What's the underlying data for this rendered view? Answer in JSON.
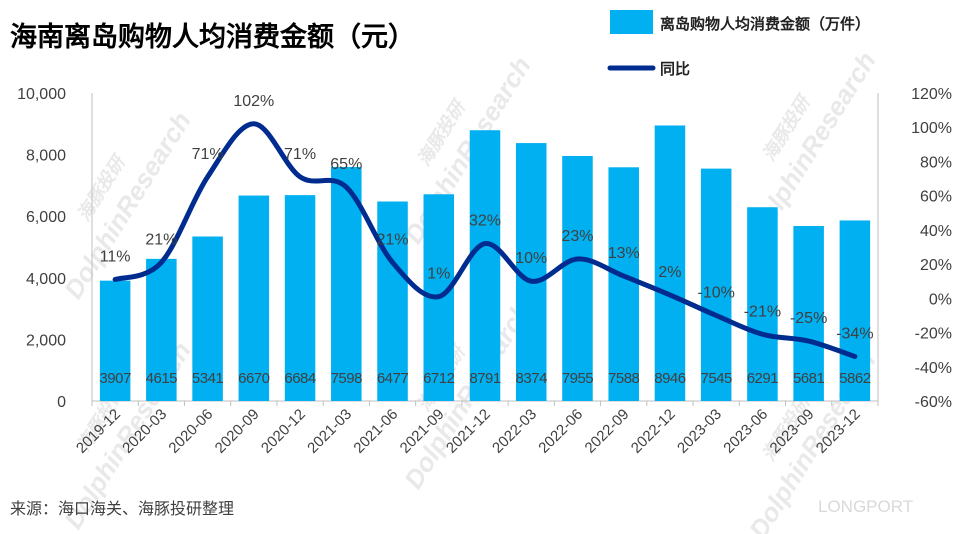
{
  "title": "海南离岛购物人均消费金额（元）",
  "source": "来源：海口海关、海豚投研整理",
  "watermark": {
    "cn": "海豚投研",
    "en": "DolphinResearch",
    "brand": "LONGPORT"
  },
  "colors": {
    "bar": "#00b0f0",
    "line": "#002c8f",
    "axis": "#bfbfbf",
    "text": "#404040"
  },
  "chart_data": {
    "type": "bar",
    "categories": [
      "2019-12",
      "2020-03",
      "2020-06",
      "2020-09",
      "2020-12",
      "2021-03",
      "2021-06",
      "2021-09",
      "2021-12",
      "2022-03",
      "2022-06",
      "2022-09",
      "2022-12",
      "2023-03",
      "2023-06",
      "2023-09",
      "2023-12"
    ],
    "series": [
      {
        "name": "离岛购物人均消费金额（万件）",
        "type": "bar",
        "axis": "left",
        "values": [
          3907,
          4615,
          5341,
          6670,
          6684,
          7598,
          6477,
          6712,
          8791,
          8374,
          7955,
          7588,
          8946,
          7545,
          6291,
          5681,
          5862
        ]
      },
      {
        "name": "同比",
        "type": "line",
        "axis": "right",
        "values": [
          11,
          21,
          71,
          102,
          71,
          65,
          21,
          1,
          32,
          10,
          23,
          13,
          2,
          -10,
          -21,
          -25,
          -34
        ],
        "labels": [
          "11%",
          "21%",
          "71%",
          "102%",
          "71%",
          "65%",
          "21%",
          "1%",
          "32%",
          "10%",
          "23%",
          "13%",
          "2%",
          "-10%",
          "-21%",
          "-25%",
          "-34%"
        ]
      }
    ],
    "y_left": {
      "min": 0,
      "max": 10000,
      "ticks": [
        "0",
        "2,000",
        "4,000",
        "6,000",
        "8,000",
        "10,000"
      ]
    },
    "y_right": {
      "min": -60,
      "max": 120,
      "ticks": [
        "-60%",
        "-40%",
        "-20%",
        "0%",
        "20%",
        "40%",
        "60%",
        "80%",
        "100%",
        "120%"
      ]
    },
    "legend": "top-right",
    "grid": false
  }
}
